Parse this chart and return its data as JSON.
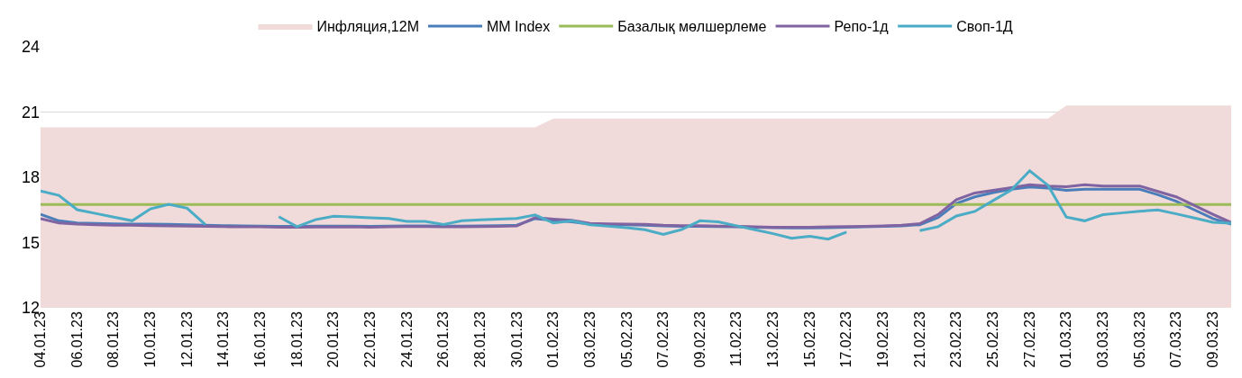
{
  "chart_data": {
    "type": "line",
    "categories": [
      "04.01.23",
      null,
      "06.01.23",
      null,
      "08.01.23",
      null,
      "10.01.23",
      null,
      "12.01.23",
      null,
      "14.01.23",
      null,
      "16.01.23",
      null,
      "18.01.23",
      null,
      "20.01.23",
      null,
      "22.01.23",
      null,
      "24.01.23",
      null,
      "26.01.23",
      null,
      "28.01.23",
      null,
      "30.01.23",
      null,
      "01.02.23",
      null,
      "03.02.23",
      null,
      "05.02.23",
      null,
      "07.02.23",
      null,
      "09.02.23",
      null,
      "11.02.23",
      null,
      "13.02.23",
      null,
      "15.02.23",
      null,
      "17.02.23",
      null,
      "19.02.23",
      null,
      "21.02.23",
      null,
      "23.02.23",
      null,
      "25.02.23",
      null,
      "27.02.23",
      null,
      "01.03.23",
      null,
      "03.03.23",
      null,
      "05.03.23",
      null,
      "07.03.23",
      null,
      "09.03.23",
      null
    ],
    "series": [
      {
        "name": "Инфляция,12М",
        "type": "area",
        "color": "#f0dada",
        "values": [
          20.3,
          20.3,
          20.3,
          20.3,
          20.3,
          20.3,
          20.3,
          20.3,
          20.3,
          20.3,
          20.3,
          20.3,
          20.3,
          20.3,
          20.3,
          20.3,
          20.3,
          20.3,
          20.3,
          20.3,
          20.3,
          20.3,
          20.3,
          20.3,
          20.3,
          20.3,
          20.3,
          20.3,
          20.7,
          20.7,
          20.7,
          20.7,
          20.7,
          20.7,
          20.7,
          20.7,
          20.7,
          20.7,
          20.7,
          20.7,
          20.7,
          20.7,
          20.7,
          20.7,
          20.7,
          20.7,
          20.7,
          20.7,
          20.7,
          20.7,
          20.7,
          20.7,
          20.7,
          20.7,
          20.7,
          20.7,
          21.3,
          21.3,
          21.3,
          21.3,
          21.3,
          21.3,
          21.3,
          21.3,
          21.3,
          21.3
        ]
      },
      {
        "name": "MM Index",
        "color": "#4a7ebb",
        "values": [
          16.3,
          16.0,
          15.9,
          15.88,
          15.86,
          15.85,
          15.85,
          15.84,
          15.82,
          15.8,
          15.78,
          15.77,
          15.76,
          15.75,
          15.75,
          15.76,
          15.76,
          15.76,
          15.75,
          15.76,
          15.77,
          15.77,
          15.76,
          15.76,
          15.77,
          15.78,
          15.8,
          16.1,
          16.02,
          15.95,
          15.85,
          15.83,
          15.82,
          15.8,
          15.77,
          15.75,
          15.75,
          15.73,
          15.72,
          15.7,
          15.68,
          15.67,
          15.67,
          15.68,
          15.7,
          15.72,
          15.74,
          15.77,
          15.82,
          16.15,
          16.8,
          17.1,
          17.3,
          17.45,
          17.55,
          17.5,
          17.4,
          17.45,
          17.45,
          17.45,
          17.45,
          17.2,
          16.9,
          16.5,
          16.1,
          15.85
        ]
      },
      {
        "name": "Базалық мөлшерлеме",
        "color": "#9bbb59",
        "values": [
          16.75,
          16.75,
          16.75,
          16.75,
          16.75,
          16.75,
          16.75,
          16.75,
          16.75,
          16.75,
          16.75,
          16.75,
          16.75,
          16.75,
          16.75,
          16.75,
          16.75,
          16.75,
          16.75,
          16.75,
          16.75,
          16.75,
          16.75,
          16.75,
          16.75,
          16.75,
          16.75,
          16.75,
          16.75,
          16.75,
          16.75,
          16.75,
          16.75,
          16.75,
          16.75,
          16.75,
          16.75,
          16.75,
          16.75,
          16.75,
          16.75,
          16.75,
          16.75,
          16.75,
          16.75,
          16.75,
          16.75,
          16.75,
          16.75,
          16.75,
          16.75,
          16.75,
          16.75,
          16.75,
          16.75,
          16.75,
          16.75,
          16.75,
          16.75,
          16.75,
          16.75,
          16.75,
          16.75,
          16.75,
          16.75,
          16.75
        ]
      },
      {
        "name": "Репо-1д",
        "color": "#8064a2",
        "values": [
          16.1,
          15.9,
          15.85,
          15.82,
          15.8,
          15.8,
          15.78,
          15.77,
          15.76,
          15.75,
          15.73,
          15.72,
          15.72,
          15.7,
          15.7,
          15.71,
          15.71,
          15.72,
          15.7,
          15.72,
          15.73,
          15.73,
          15.72,
          15.72,
          15.73,
          15.74,
          15.76,
          16.15,
          16.08,
          16.02,
          15.88,
          15.86,
          15.85,
          15.84,
          15.8,
          15.78,
          15.78,
          15.76,
          15.75,
          15.72,
          15.7,
          15.7,
          15.7,
          15.72,
          15.73,
          15.75,
          15.77,
          15.8,
          15.87,
          16.29,
          16.97,
          17.28,
          17.4,
          17.53,
          17.66,
          17.6,
          17.57,
          17.66,
          17.6,
          17.6,
          17.6,
          17.35,
          17.1,
          16.7,
          16.3,
          15.92
        ]
      },
      {
        "name": "Своп-1Д",
        "color": "#4bacc6",
        "values": [
          17.37,
          17.17,
          16.51,
          16.34,
          16.17,
          16.0,
          16.55,
          16.76,
          16.58,
          15.82,
          null,
          null,
          null,
          16.19,
          15.73,
          16.05,
          16.21,
          16.18,
          16.14,
          16.11,
          15.97,
          15.97,
          15.83,
          16.0,
          16.04,
          16.08,
          16.11,
          16.27,
          15.9,
          16.0,
          15.82,
          15.75,
          15.68,
          15.59,
          15.37,
          15.6,
          16.0,
          15.95,
          15.77,
          15.59,
          15.41,
          15.2,
          15.29,
          15.16,
          15.48,
          null,
          null,
          null,
          15.55,
          15.73,
          16.22,
          16.43,
          16.93,
          17.42,
          18.3,
          17.63,
          16.17,
          16.0,
          16.28,
          16.36,
          16.44,
          16.5,
          16.32,
          16.13,
          15.93,
          15.89
        ]
      }
    ],
    "ylim": [
      12,
      24
    ],
    "yticks": [
      12,
      15,
      18,
      21,
      24
    ],
    "grid": "y",
    "legend": "top"
  }
}
